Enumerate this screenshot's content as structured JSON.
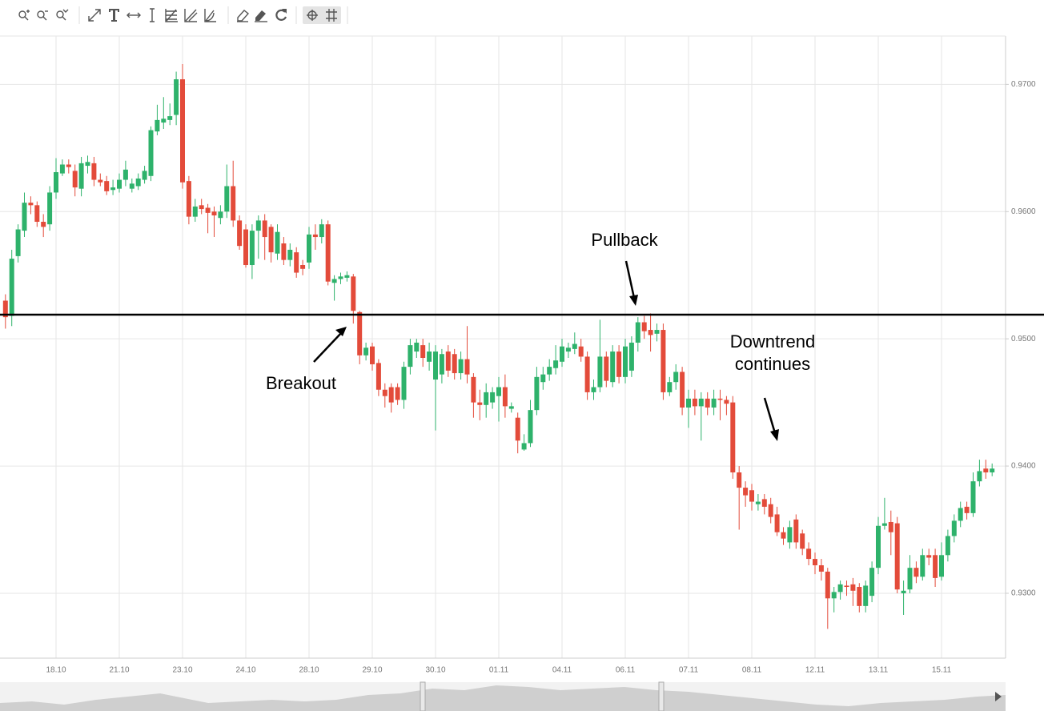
{
  "chart_data": {
    "type": "candlestick",
    "up_color": "#2eb26b",
    "down_color": "#e34b3a",
    "level": 0.9519,
    "level_color": "#000000",
    "ylim": [
      0.9249,
      0.9738
    ],
    "yticks": [
      {
        "value": 0.93,
        "label": "0.9300"
      },
      {
        "value": 0.94,
        "label": "0.9400"
      },
      {
        "value": 0.95,
        "label": "0.9500"
      },
      {
        "value": 0.96,
        "label": "0.9600"
      },
      {
        "value": 0.97,
        "label": "0.9700"
      }
    ],
    "grid": true,
    "categories": [
      null,
      null,
      null,
      null,
      null,
      null,
      null,
      null,
      "18.10",
      null,
      null,
      null,
      null,
      null,
      null,
      null,
      null,
      null,
      "21.10",
      null,
      null,
      null,
      null,
      null,
      null,
      null,
      null,
      null,
      "23.10",
      null,
      null,
      null,
      null,
      null,
      null,
      null,
      null,
      null,
      "24.10",
      null,
      null,
      null,
      null,
      null,
      null,
      null,
      null,
      null,
      "28.10",
      null,
      null,
      null,
      null,
      null,
      null,
      null,
      null,
      null,
      "29.10",
      null,
      null,
      null,
      null,
      null,
      null,
      null,
      null,
      null,
      "30.10",
      null,
      null,
      null,
      null,
      null,
      null,
      null,
      null,
      null,
      "01.11",
      null,
      null,
      null,
      null,
      null,
      null,
      null,
      null,
      null,
      "04.11",
      null,
      null,
      null,
      null,
      null,
      null,
      null,
      null,
      null,
      "06.11",
      null,
      null,
      null,
      null,
      null,
      null,
      null,
      null,
      null,
      "07.11",
      null,
      null,
      null,
      null,
      null,
      null,
      null,
      null,
      null,
      "08.11",
      null,
      null,
      null,
      null,
      null,
      null,
      null,
      null,
      null,
      "12.11",
      null,
      null,
      null,
      null,
      null,
      null,
      null,
      null,
      null,
      "13.11",
      null,
      null,
      null,
      null,
      null,
      null,
      null,
      null,
      null,
      "15.11",
      null,
      null,
      null,
      null,
      null,
      null,
      null,
      null
    ],
    "open": [
      0.953,
      0.9518,
      0.9565,
      0.9585,
      0.9607,
      0.9605,
      0.9592,
      0.959,
      0.9615,
      0.963,
      0.9637,
      0.9632,
      0.9618,
      0.9636,
      0.9638,
      0.9625,
      0.9624,
      0.9617,
      0.9618,
      0.9625,
      0.9618,
      0.962,
      0.9625,
      0.9628,
      0.9663,
      0.967,
      0.9672,
      0.9676,
      0.9704,
      0.9624,
      0.9596,
      0.9605,
      0.9603,
      0.96,
      0.9595,
      0.96,
      0.962,
      0.9593,
      0.9586,
      0.9558,
      0.9585,
      0.9593,
      0.9588,
      0.9567,
      0.9575,
      0.9562,
      0.9568,
      0.9558,
      0.956,
      0.9582,
      0.958,
      0.959,
      0.9544,
      0.9547,
      0.9548,
      0.9549,
      0.9521,
      0.9487,
      0.9494,
      0.9481,
      0.946,
      0.9462,
      0.9462,
      0.9452,
      0.9478,
      0.949,
      0.9495,
      0.9482,
      0.9468,
      0.9472,
      0.949,
      0.9488,
      0.9473,
      0.9484,
      0.947,
      0.945,
      0.9448,
      0.945,
      0.9455,
      0.9462,
      0.9445,
      0.9438,
      0.9413,
      0.9418,
      0.9444,
      0.9466,
      0.9472,
      0.9477,
      0.9482,
      0.949,
      0.9492,
      0.9494,
      0.9486,
      0.9458,
      0.9462,
      0.9486,
      0.9466,
      0.949,
      0.947,
      0.9475,
      0.9497,
      0.9513,
      0.9507,
      0.9504,
      0.9507,
      0.9458,
      0.9466,
      0.9474,
      0.9446,
      0.9453,
      0.9447,
      0.9453,
      0.9446,
      0.9453,
      0.9452,
      0.945,
      0.9395,
      0.9383,
      0.9381,
      0.937,
      0.9374,
      0.937,
      0.9362,
      0.9348,
      0.934,
      0.9358,
      0.9347,
      0.9335,
      0.9327,
      0.9322,
      0.9317,
      0.9296,
      0.9301,
      0.9306,
      0.9307,
      0.9305,
      0.929,
      0.9298,
      0.932,
      0.9353,
      0.9356,
      0.9355,
      0.93,
      0.9303,
      0.932,
      0.9313,
      0.933,
      0.933,
      0.9313,
      0.933,
      0.9345,
      0.9357,
      0.9368,
      0.9363,
      0.9388,
      0.9398,
      0.9395
    ],
    "high": [
      0.9535,
      0.957,
      0.959,
      0.9615,
      0.9612,
      0.9608,
      0.9598,
      0.962,
      0.9642,
      0.9641,
      0.9641,
      0.9637,
      0.9643,
      0.9644,
      0.9643,
      0.963,
      0.9628,
      0.9625,
      0.963,
      0.964,
      0.9626,
      0.963,
      0.9636,
      0.9667,
      0.9684,
      0.969,
      0.9685,
      0.971,
      0.9716,
      0.9628,
      0.961,
      0.961,
      0.9606,
      0.9604,
      0.9605,
      0.9637,
      0.964,
      0.9597,
      0.959,
      0.959,
      0.9597,
      0.9598,
      0.959,
      0.959,
      0.958,
      0.9575,
      0.9572,
      0.9562,
      0.9588,
      0.959,
      0.9594,
      0.9593,
      0.955,
      0.9552,
      0.9553,
      0.9551,
      0.9522,
      0.9497,
      0.9497,
      0.9484,
      0.9465,
      0.9465,
      0.9465,
      0.9482,
      0.95,
      0.95,
      0.95,
      0.9497,
      0.9495,
      0.9492,
      0.9495,
      0.9492,
      0.949,
      0.951,
      0.9473,
      0.946,
      0.9465,
      0.9462,
      0.947,
      0.9472,
      0.945,
      0.9442,
      0.9425,
      0.9452,
      0.9478,
      0.9478,
      0.9484,
      0.9495,
      0.95,
      0.9497,
      0.9505,
      0.95,
      0.949,
      0.9468,
      0.9515,
      0.949,
      0.9495,
      0.9495,
      0.95,
      0.9502,
      0.9517,
      0.9518,
      0.952,
      0.9512,
      0.9512,
      0.947,
      0.948,
      0.9478,
      0.946,
      0.946,
      0.9458,
      0.9458,
      0.946,
      0.946,
      0.9455,
      0.9455,
      0.94,
      0.9388,
      0.9386,
      0.9378,
      0.9378,
      0.9375,
      0.9368,
      0.9352,
      0.9357,
      0.9362,
      0.935,
      0.934,
      0.9332,
      0.9327,
      0.932,
      0.9305,
      0.931,
      0.931,
      0.9312,
      0.9308,
      0.931,
      0.9325,
      0.936,
      0.9375,
      0.9365,
      0.936,
      0.931,
      0.933,
      0.9325,
      0.9335,
      0.9335,
      0.9335,
      0.934,
      0.935,
      0.9362,
      0.9372,
      0.9372,
      0.9395,
      0.9405,
      0.9405,
      0.9402
    ],
    "low": [
      0.9508,
      0.951,
      0.956,
      0.958,
      0.9598,
      0.9588,
      0.958,
      0.9585,
      0.961,
      0.9628,
      0.963,
      0.9612,
      0.9612,
      0.963,
      0.962,
      0.962,
      0.9613,
      0.9613,
      0.9615,
      0.962,
      0.9615,
      0.9617,
      0.9622,
      0.9624,
      0.966,
      0.9665,
      0.9668,
      0.9668,
      0.9618,
      0.959,
      0.9592,
      0.9598,
      0.9583,
      0.958,
      0.959,
      0.9595,
      0.9588,
      0.957,
      0.9556,
      0.9547,
      0.9563,
      0.9562,
      0.956,
      0.9562,
      0.9558,
      0.9557,
      0.9548,
      0.955,
      0.9555,
      0.957,
      0.9575,
      0.9542,
      0.953,
      0.9543,
      0.9545,
      0.9512,
      0.948,
      0.9483,
      0.9475,
      0.9455,
      0.9446,
      0.9442,
      0.9448,
      0.9445,
      0.9472,
      0.9485,
      0.9478,
      0.9475,
      0.9428,
      0.9465,
      0.947,
      0.9468,
      0.9468,
      0.9465,
      0.9438,
      0.9436,
      0.9438,
      0.9445,
      0.9435,
      0.9438,
      0.9442,
      0.941,
      0.9412,
      0.9415,
      0.944,
      0.946,
      0.9467,
      0.9472,
      0.9478,
      0.9485,
      0.9488,
      0.9482,
      0.9452,
      0.9452,
      0.9458,
      0.9462,
      0.9462,
      0.9465,
      0.9465,
      0.947,
      0.949,
      0.95,
      0.949,
      0.9498,
      0.9452,
      0.9455,
      0.946,
      0.944,
      0.943,
      0.944,
      0.942,
      0.944,
      0.944,
      0.9436,
      0.944,
      0.939,
      0.935,
      0.9368,
      0.9365,
      0.9365,
      0.9362,
      0.9355,
      0.9345,
      0.9338,
      0.9335,
      0.9335,
      0.933,
      0.9322,
      0.9315,
      0.931,
      0.9272,
      0.9285,
      0.9295,
      0.9298,
      0.929,
      0.9285,
      0.9285,
      0.9293,
      0.9315,
      0.935,
      0.933,
      0.93,
      0.9283,
      0.93,
      0.9308,
      0.931,
      0.9322,
      0.9305,
      0.931,
      0.9325,
      0.934,
      0.9352,
      0.9358,
      0.936,
      0.9384,
      0.939,
      0.9392
    ],
    "close": [
      0.9517,
      0.9563,
      0.9586,
      0.9607,
      0.9605,
      0.9592,
      0.9588,
      0.9615,
      0.9631,
      0.9637,
      0.9635,
      0.9619,
      0.9638,
      0.9639,
      0.9625,
      0.9623,
      0.9616,
      0.9619,
      0.9625,
      0.9633,
      0.9622,
      0.9626,
      0.9632,
      0.9664,
      0.9672,
      0.9673,
      0.9675,
      0.9704,
      0.9623,
      0.9596,
      0.9604,
      0.9602,
      0.9599,
      0.9597,
      0.96,
      0.962,
      0.9593,
      0.9573,
      0.9558,
      0.9585,
      0.9593,
      0.958,
      0.9568,
      0.9584,
      0.9562,
      0.957,
      0.9552,
      0.9555,
      0.9582,
      0.958,
      0.959,
      0.9545,
      0.9547,
      0.9549,
      0.955,
      0.9522,
      0.9487,
      0.9493,
      0.948,
      0.946,
      0.9455,
      0.945,
      0.9452,
      0.9478,
      0.9495,
      0.9497,
      0.9485,
      0.949,
      0.949,
      0.9488,
      0.9475,
      0.9473,
      0.9484,
      0.9472,
      0.945,
      0.9448,
      0.9458,
      0.9458,
      0.9462,
      0.9447,
      0.9447,
      0.942,
      0.9418,
      0.9444,
      0.947,
      0.9472,
      0.9478,
      0.9483,
      0.9494,
      0.9493,
      0.9496,
      0.9486,
      0.9458,
      0.9462,
      0.9486,
      0.9467,
      0.949,
      0.947,
      0.9494,
      0.9497,
      0.9513,
      0.9506,
      0.9503,
      0.9507,
      0.9458,
      0.9466,
      0.9474,
      0.9446,
      0.9453,
      0.9447,
      0.9453,
      0.9446,
      0.9453,
      0.9452,
      0.9449,
      0.9395,
      0.9383,
      0.9377,
      0.9372,
      0.9372,
      0.9368,
      0.936,
      0.9348,
      0.9343,
      0.9352,
      0.934,
      0.9335,
      0.9327,
      0.9322,
      0.9317,
      0.9296,
      0.9301,
      0.9307,
      0.9305,
      0.9302,
      0.929,
      0.9306,
      0.932,
      0.9353,
      0.9355,
      0.9348,
      0.9303,
      0.9302,
      0.932,
      0.9313,
      0.933,
      0.9328,
      0.9312,
      0.933,
      0.9345,
      0.9357,
      0.9367,
      0.9363,
      0.9388,
      0.9396,
      0.9395,
      0.9398
    ],
    "annotations": [
      {
        "text": "Breakout"
      },
      {
        "text": "Pullback"
      },
      {
        "text": "Downtrend continues"
      }
    ]
  }
}
